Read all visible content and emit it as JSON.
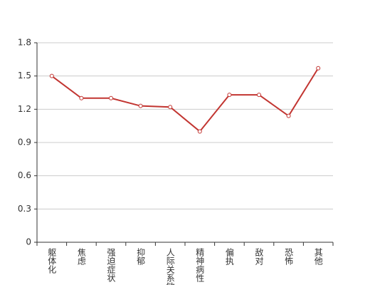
{
  "chart_data": {
    "type": "line",
    "categories": [
      "躯体化",
      "焦虑",
      "强迫症状",
      "抑郁",
      "人际关系敏感",
      "精神病性",
      "偏执",
      "敌对",
      "恐怖",
      "其他"
    ],
    "values": [
      1.5,
      1.3,
      1.3,
      1.23,
      1.22,
      1.0,
      1.33,
      1.33,
      1.14,
      1.57
    ],
    "color": "#c23531",
    "ylim": [
      0,
      1.8
    ],
    "yticks": [
      0,
      0.3,
      0.6,
      0.9,
      1.2,
      1.5,
      1.8
    ],
    "grid": true
  }
}
